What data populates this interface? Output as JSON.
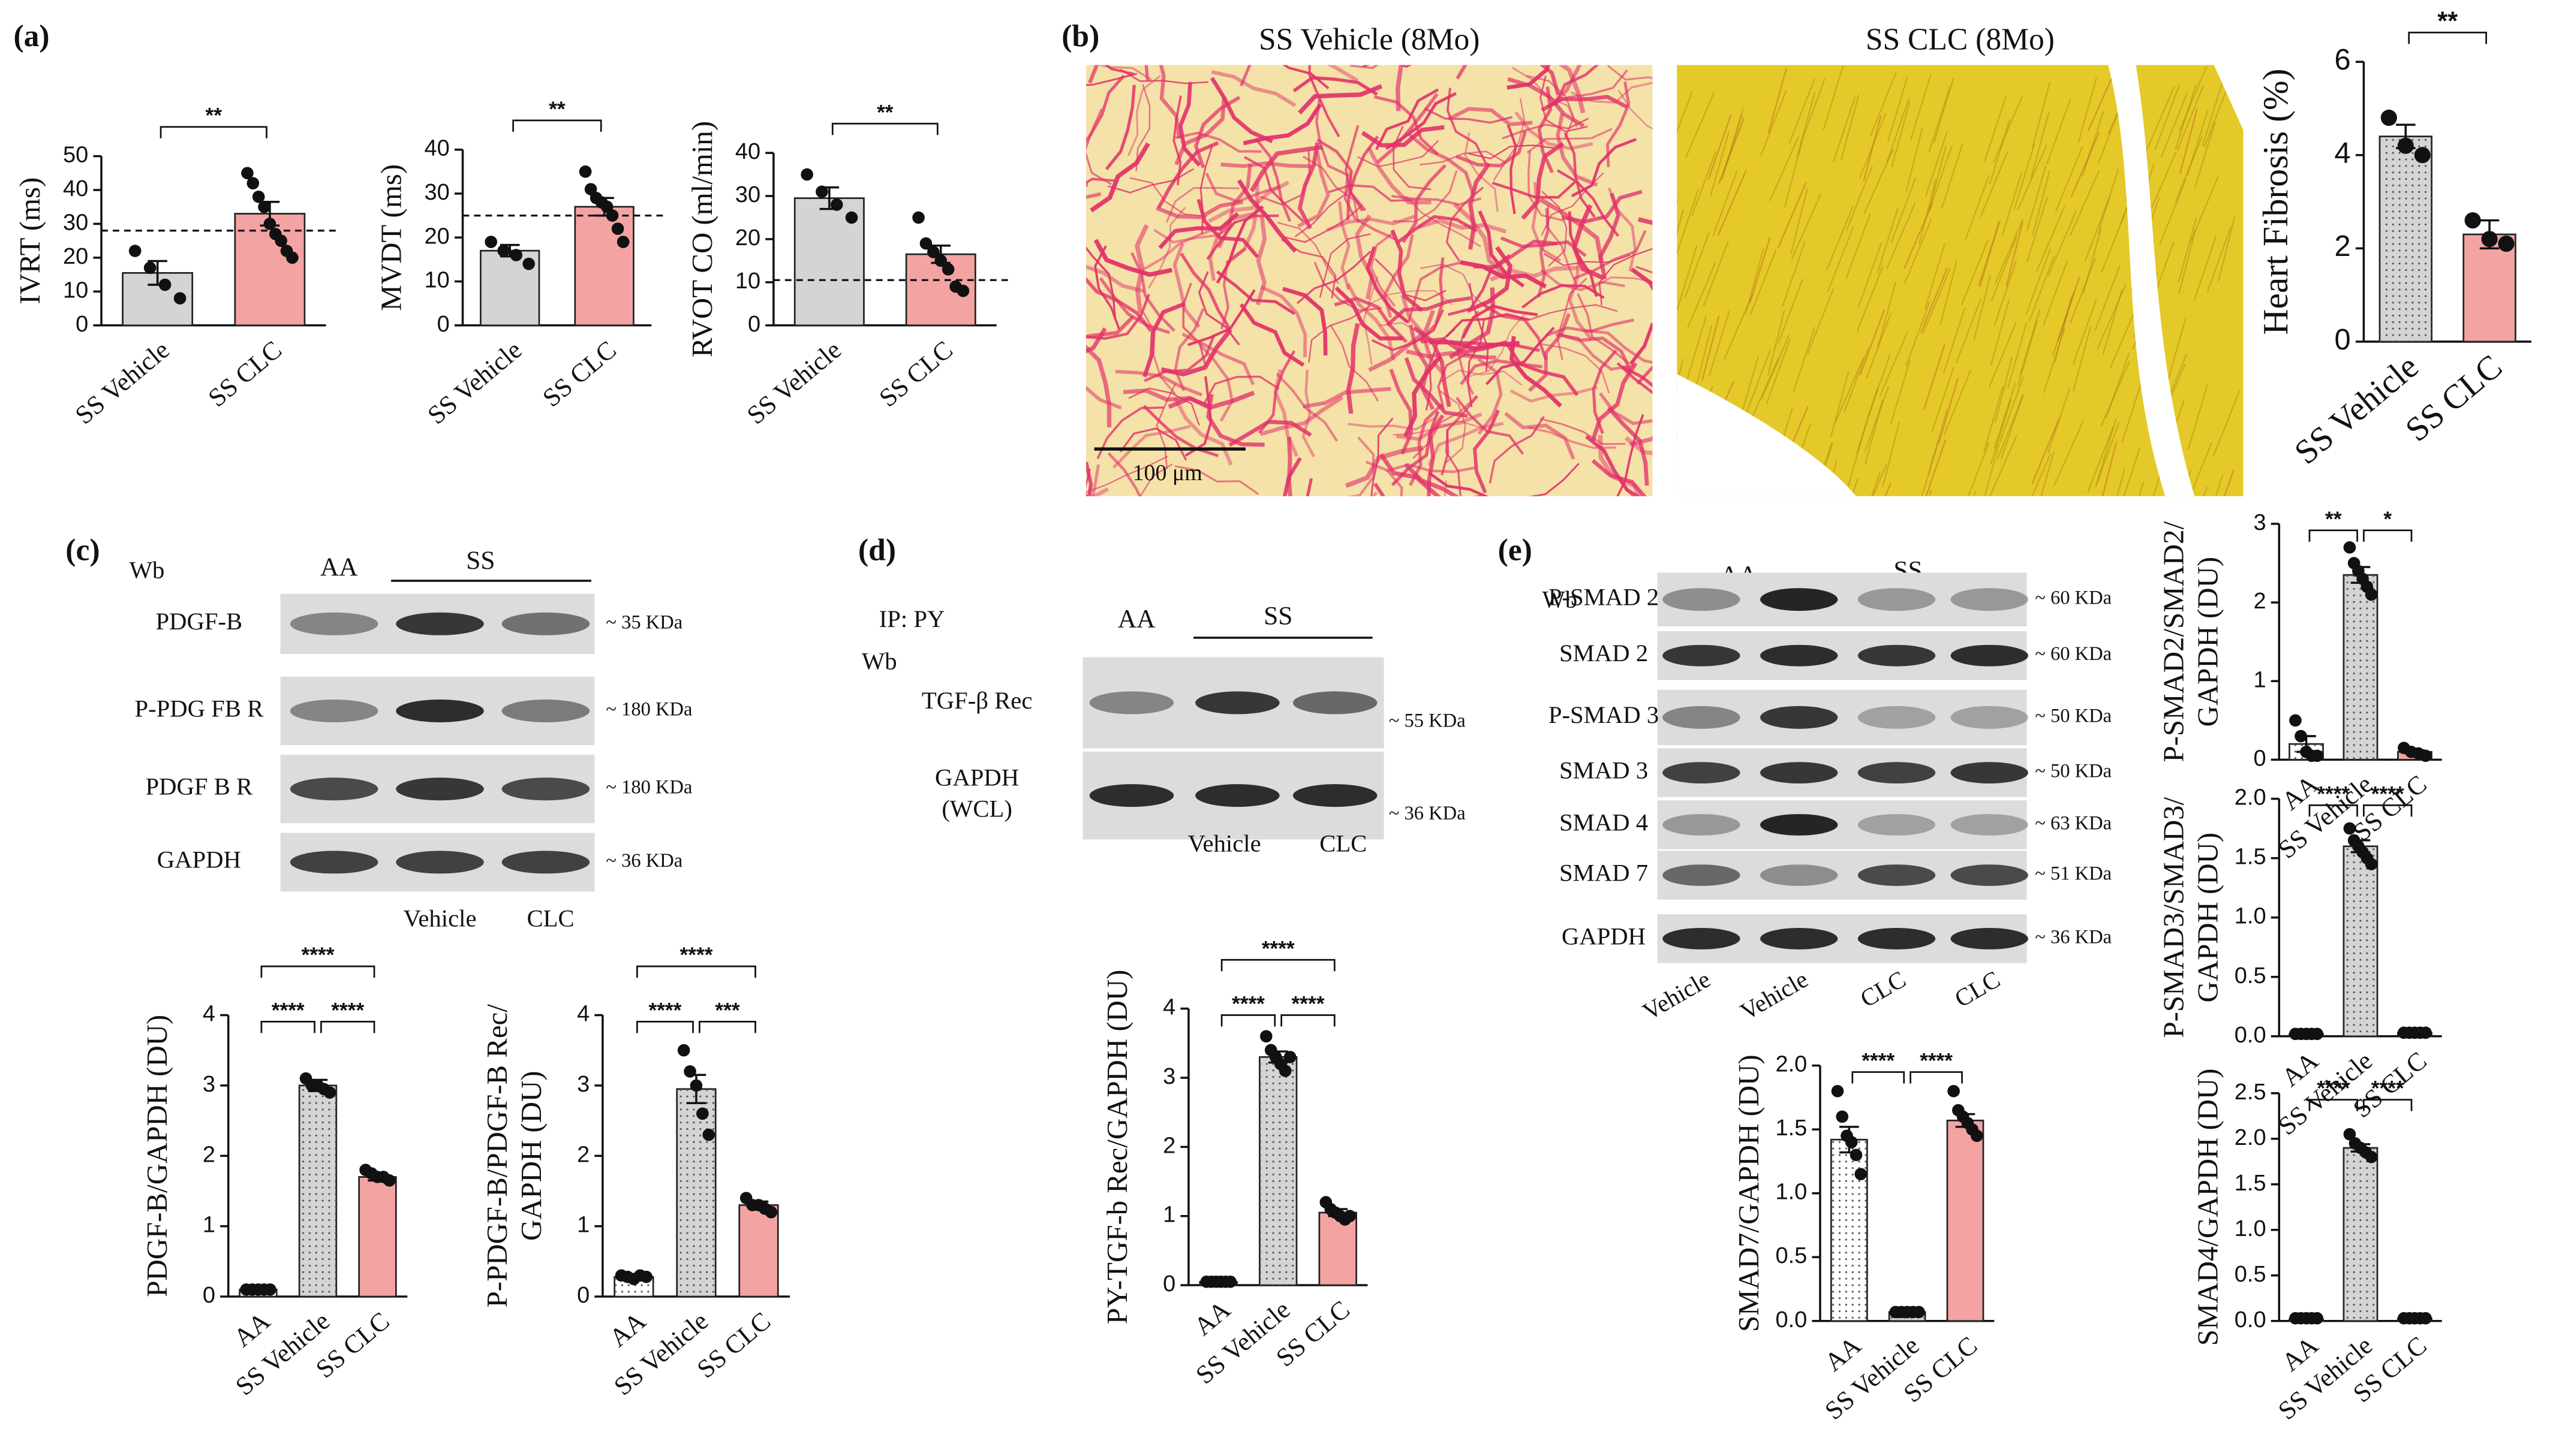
{
  "panel_labels": [
    "(a)",
    "(b)",
    "(c)",
    "(d)",
    "(e)"
  ],
  "micrographs": [
    {
      "title": "SS  Vehicle (8Mo)",
      "scale_bar": "100 μm"
    },
    {
      "title": "SS  CLC (8Mo)"
    }
  ],
  "blots": [
    {
      "header": [
        "Wb"
      ],
      "groups": [
        "AA",
        "SS"
      ],
      "rows": [
        {
          "label": [
            "PDGF-B"
          ],
          "size": "~ 35 KDa"
        },
        {
          "label": [
            "P-PDG FB R"
          ],
          "size": "~ 180 KDa"
        },
        {
          "label": [
            "PDGF B R"
          ],
          "size": "~ 180 KDa"
        },
        {
          "label": [
            "GAPDH"
          ],
          "size": "~ 36 KDa"
        }
      ],
      "lanes": [
        "Vehicle",
        "CLC"
      ]
    },
    {
      "header": [
        "IP: PY",
        "Wb"
      ],
      "groups": [
        "AA",
        "SS"
      ],
      "rows": [
        {
          "label": [
            "TGF-β Rec"
          ],
          "size": "~ 55 KDa"
        },
        {
          "label": [
            "GAPDH",
            "(WCL)"
          ],
          "size": "~ 36 KDa"
        }
      ],
      "lanes": [
        "Vehicle",
        "CLC"
      ]
    },
    {
      "header": [
        "Wb"
      ],
      "groups": [
        "AA",
        "SS"
      ],
      "rows": [
        {
          "label": [
            "P-SMAD 2"
          ],
          "size": "~ 60 KDa"
        },
        {
          "label": [
            "SMAD 2"
          ],
          "size": "~ 60 KDa"
        },
        {
          "label": [
            "P-SMAD 3"
          ],
          "size": "~ 50 KDa"
        },
        {
          "label": [
            "SMAD 3"
          ],
          "size": "~ 50 KDa"
        },
        {
          "label": [
            "SMAD 4"
          ],
          "size": "~ 63 KDa"
        },
        {
          "label": [
            "SMAD 7"
          ],
          "size": "~ 51 KDa"
        },
        {
          "label": [
            "GAPDH"
          ],
          "size": "~ 36 KDa"
        }
      ],
      "lanes": [
        "Vehicle",
        "Vehicle",
        "CLC",
        "CLC"
      ]
    }
  ],
  "chart_data": [
    {
      "type": "bar",
      "ylabel": [
        "IVRT (ms)"
      ],
      "categories": [
        "SS Vehicle",
        "SS CLC"
      ],
      "values": [
        15.5,
        33
      ],
      "errors": [
        3.5,
        3.5
      ],
      "points": [
        [
          22,
          17,
          12,
          8
        ],
        [
          45,
          42,
          38,
          35,
          30,
          27,
          25,
          22,
          20
        ]
      ],
      "colors": [
        "#d4d4d4",
        "#f4a3a3"
      ],
      "dotted": [
        false,
        false
      ],
      "ylim": [
        0,
        50
      ],
      "yticks": [
        0,
        10,
        20,
        30,
        40,
        50
      ],
      "reference_line": 28,
      "significance": [
        {
          "from": 0,
          "to": 1,
          "label": "**"
        }
      ]
    },
    {
      "type": "bar",
      "ylabel": [
        "MVDT (ms)"
      ],
      "categories": [
        "SS Vehicle",
        "SS CLC"
      ],
      "values": [
        17,
        27
      ],
      "errors": [
        1.3,
        2
      ],
      "points": [
        [
          19,
          17,
          16,
          14
        ],
        [
          35,
          31,
          29,
          28,
          27,
          25,
          22,
          19
        ]
      ],
      "colors": [
        "#d4d4d4",
        "#f4a3a3"
      ],
      "dotted": [
        false,
        false
      ],
      "ylim": [
        0,
        40
      ],
      "yticks": [
        0,
        10,
        20,
        30,
        40
      ],
      "reference_line": 25,
      "significance": [
        {
          "from": 0,
          "to": 1,
          "label": "**"
        }
      ]
    },
    {
      "type": "bar",
      "ylabel": [
        "RVOT CO (ml/min)"
      ],
      "categories": [
        "SS Vehicle",
        "SS CLC"
      ],
      "values": [
        29.5,
        16.5
      ],
      "errors": [
        2.5,
        2
      ],
      "points": [
        [
          35,
          31,
          28,
          25
        ],
        [
          25,
          19,
          17,
          15,
          13,
          9,
          8
        ]
      ],
      "colors": [
        "#d4d4d4",
        "#f4a3a3"
      ],
      "dotted": [
        false,
        false
      ],
      "ylim": [
        0,
        40
      ],
      "yticks": [
        0,
        10,
        20,
        30,
        40
      ],
      "reference_line": 10.5,
      "significance": [
        {
          "from": 0,
          "to": 1,
          "label": "**"
        }
      ]
    },
    {
      "type": "bar",
      "ylabel": [
        "Heart Fibrosis (%)"
      ],
      "categories": [
        "SS Vehicle",
        "SS CLC"
      ],
      "values": [
        4.4,
        2.3
      ],
      "errors": [
        0.25,
        0.3
      ],
      "points": [
        [
          4.8,
          4.2,
          4.0
        ],
        [
          2.6,
          2.2,
          2.1
        ]
      ],
      "colors": [
        "#d4d4d4",
        "#f4a3a3"
      ],
      "dotted": [
        true,
        false
      ],
      "ylim": [
        0,
        6
      ],
      "yticks": [
        0,
        2,
        4,
        6
      ],
      "significance": [
        {
          "from": 0,
          "to": 1,
          "label": "**"
        }
      ]
    },
    {
      "type": "bar",
      "ylabel": [
        "PDGF-B/GAPDH (DU)"
      ],
      "categories": [
        "AA",
        "SS Vehicle",
        "SS CLC"
      ],
      "values": [
        0.1,
        3.0,
        1.7
      ],
      "errors": [
        0.03,
        0.08,
        0.05
      ],
      "points": [
        [
          0.1,
          0.1,
          0.1,
          0.1,
          0.1
        ],
        [
          3.1,
          3.0,
          3.0,
          2.95,
          2.9
        ],
        [
          1.8,
          1.75,
          1.7,
          1.7,
          1.65
        ]
      ],
      "colors": [
        "#ffffff",
        "#d4d4d4",
        "#f4a3a3"
      ],
      "dotted": [
        true,
        true,
        false
      ],
      "ylim": [
        0,
        4
      ],
      "yticks": [
        0,
        1,
        2,
        3,
        4
      ],
      "significance": [
        {
          "from": 0,
          "to": 1,
          "label": "****"
        },
        {
          "from": 1,
          "to": 2,
          "label": "****"
        },
        {
          "from": 0,
          "to": 2,
          "label": "****"
        }
      ]
    },
    {
      "type": "bar",
      "ylabel": [
        "P-PDGF-B/PDGF-B Rec/",
        "GAPDH  (DU)"
      ],
      "categories": [
        "AA",
        "SS Vehicle",
        "SS CLC"
      ],
      "values": [
        0.28,
        2.95,
        1.3
      ],
      "errors": [
        0.02,
        0.2,
        0.05
      ],
      "points": [
        [
          0.3,
          0.28,
          0.25,
          0.3,
          0.28
        ],
        [
          3.5,
          3.2,
          3.0,
          2.6,
          2.3
        ],
        [
          1.4,
          1.3,
          1.3,
          1.25,
          1.2
        ]
      ],
      "colors": [
        "#ffffff",
        "#d4d4d4",
        "#f4a3a3"
      ],
      "dotted": [
        true,
        true,
        false
      ],
      "ylim": [
        0,
        4
      ],
      "yticks": [
        0,
        1,
        2,
        3,
        4
      ],
      "significance": [
        {
          "from": 0,
          "to": 1,
          "label": "****"
        },
        {
          "from": 1,
          "to": 2,
          "label": "***"
        },
        {
          "from": 0,
          "to": 2,
          "label": "****"
        }
      ]
    },
    {
      "type": "bar",
      "ylabel": [
        "PY-TGF-b Rec/GAPDH (DU)"
      ],
      "categories": [
        "AA",
        "SS Vehicle",
        "SS CLC"
      ],
      "values": [
        0.05,
        3.3,
        1.05
      ],
      "errors": [
        0.02,
        0.08,
        0.05
      ],
      "points": [
        [
          0.05,
          0.05,
          0.05,
          0.05,
          0.05,
          0.05
        ],
        [
          3.6,
          3.4,
          3.3,
          3.2,
          3.1,
          3.3
        ],
        [
          1.2,
          1.1,
          1.05,
          1.0,
          0.95,
          1.0
        ]
      ],
      "colors": [
        "#ffffff",
        "#d4d4d4",
        "#f4a3a3"
      ],
      "dotted": [
        true,
        true,
        false
      ],
      "ylim": [
        0,
        4
      ],
      "yticks": [
        0,
        1,
        2,
        3,
        4
      ],
      "significance": [
        {
          "from": 0,
          "to": 1,
          "label": "****"
        },
        {
          "from": 1,
          "to": 2,
          "label": "****"
        },
        {
          "from": 0,
          "to": 2,
          "label": "****"
        }
      ]
    },
    {
      "type": "bar",
      "ylabel": [
        "SMAD7/GAPDH (DU)"
      ],
      "categories": [
        "AA",
        "SS Vehicle",
        "SS CLC"
      ],
      "values": [
        1.42,
        0.07,
        1.57
      ],
      "errors": [
        0.1,
        0.01,
        0.05
      ],
      "points": [
        [
          1.8,
          1.6,
          1.45,
          1.4,
          1.3,
          1.15
        ],
        [
          0.07,
          0.07,
          0.07,
          0.07,
          0.07
        ],
        [
          1.8,
          1.65,
          1.6,
          1.55,
          1.5,
          1.45
        ]
      ],
      "colors": [
        "#ffffff",
        "#d4d4d4",
        "#f4a3a3"
      ],
      "dotted": [
        true,
        true,
        false
      ],
      "ylim": [
        0,
        2
      ],
      "yticks": [
        {
          "value": 0,
          "label": "0.0"
        },
        0.5,
        {
          "value": 1,
          "label": "1.0"
        },
        1.5,
        {
          "value": 2,
          "label": "2.0"
        }
      ],
      "significance": [
        {
          "from": 0,
          "to": 1,
          "label": "****"
        },
        {
          "from": 1,
          "to": 2,
          "label": "****"
        }
      ]
    },
    {
      "type": "bar",
      "ylabel": [
        "P-SMAD2/SMAD2/",
        "GAPDH (DU)"
      ],
      "categories": [
        "AA",
        "SS Vehicle",
        "SS CLC"
      ],
      "values": [
        0.2,
        2.35,
        0.1
      ],
      "errors": [
        0.1,
        0.1,
        0.02
      ],
      "points": [
        [
          0.5,
          0.3,
          0.1,
          0.05,
          0.05
        ],
        [
          2.7,
          2.5,
          2.4,
          2.3,
          2.2,
          2.1
        ],
        [
          0.15,
          0.1,
          0.08,
          0.05
        ]
      ],
      "colors": [
        "#ffffff",
        "#d4d4d4",
        "#f4a3a3"
      ],
      "dotted": [
        true,
        true,
        false
      ],
      "ylim": [
        0,
        3
      ],
      "yticks": [
        0,
        1,
        2,
        3
      ],
      "significance": [
        {
          "from": 0,
          "to": 1,
          "label": "**"
        },
        {
          "from": 1,
          "to": 2,
          "label": "*"
        }
      ]
    },
    {
      "type": "bar",
      "ylabel": [
        "P-SMAD3/SMAD3/",
        "GAPDH (DU)"
      ],
      "categories": [
        "AA",
        "SS Vehicle",
        "SS CLC"
      ],
      "values": [
        0.02,
        1.6,
        0.03
      ],
      "errors": [
        0.01,
        0.05,
        0.01
      ],
      "points": [
        [
          0.02,
          0.02,
          0.02,
          0.02,
          0.02
        ],
        [
          1.75,
          1.65,
          1.6,
          1.55,
          1.5,
          1.45
        ],
        [
          0.03,
          0.03,
          0.03,
          0.03,
          0.03
        ]
      ],
      "colors": [
        "#ffffff",
        "#d4d4d4",
        "#f4a3a3"
      ],
      "dotted": [
        true,
        true,
        false
      ],
      "ylim": [
        0,
        2
      ],
      "yticks": [
        {
          "value": 0,
          "label": "0.0"
        },
        0.5,
        {
          "value": 1,
          "label": "1.0"
        },
        1.5,
        {
          "value": 2,
          "label": "2.0"
        }
      ],
      "significance": [
        {
          "from": 0,
          "to": 1,
          "label": "****"
        },
        {
          "from": 1,
          "to": 2,
          "label": "****"
        }
      ]
    },
    {
      "type": "bar",
      "ylabel": [
        "SMAD4/GAPDH (DU)"
      ],
      "categories": [
        "AA",
        "SS Vehicle",
        "SS CLC"
      ],
      "values": [
        0.02,
        1.9,
        0.03
      ],
      "errors": [
        0.01,
        0.04,
        0.01
      ],
      "points": [
        [
          0.03,
          0.03,
          0.03,
          0.03,
          0.03
        ],
        [
          2.05,
          1.95,
          1.9,
          1.85,
          1.8
        ],
        [
          0.03,
          0.03,
          0.03,
          0.03,
          0.03
        ]
      ],
      "colors": [
        "#ffffff",
        "#d4d4d4",
        "#f4a3a3"
      ],
      "dotted": [
        true,
        true,
        false
      ],
      "ylim": [
        0,
        2.5
      ],
      "yticks": [
        {
          "value": 0,
          "label": "0.0"
        },
        0.5,
        {
          "value": 1,
          "label": "1.0"
        },
        1.5,
        {
          "value": 2,
          "label": "2.0"
        },
        2.5
      ],
      "significance": [
        {
          "from": 0,
          "to": 1,
          "label": "****"
        },
        {
          "from": 1,
          "to": 2,
          "label": "****"
        }
      ]
    }
  ]
}
